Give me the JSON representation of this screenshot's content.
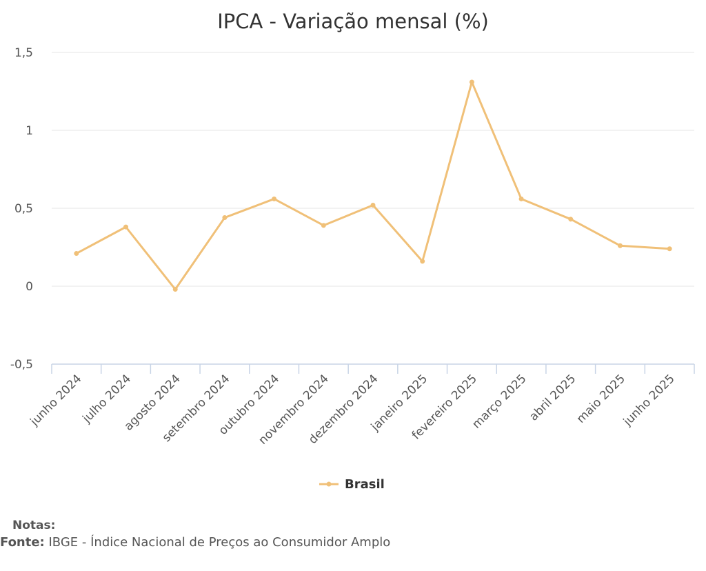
{
  "chart_data": {
    "type": "line",
    "title": "IPCA - Variação mensal (%)",
    "categories": [
      "junho 2024",
      "julho 2024",
      "agosto 2024",
      "setembro 2024",
      "outubro 2024",
      "novembro 2024",
      "dezembro 2024",
      "janeiro 2025",
      "fevereiro 2025",
      "março 2025",
      "abril 2025",
      "maio 2025",
      "junho 2025"
    ],
    "series": [
      {
        "name": "Brasil",
        "color": "#f0c078",
        "values": [
          0.21,
          0.38,
          -0.02,
          0.44,
          0.56,
          0.39,
          0.52,
          0.16,
          1.31,
          0.56,
          0.43,
          0.26,
          0.24
        ]
      }
    ],
    "ylim": [
      -0.5,
      1.5
    ],
    "yticks": [
      -0.5,
      0,
      0.5,
      1,
      1.5
    ],
    "ytick_labels": [
      "-0,5",
      "0",
      "0,5",
      "1",
      "1,5"
    ],
    "grid": true,
    "legend": "bottom-center"
  },
  "footer": {
    "notes_label": "Notas:",
    "source_label": "Fonte:",
    "source_text": "IBGE - Índice Nacional de Preços ao Consumidor Amplo"
  }
}
